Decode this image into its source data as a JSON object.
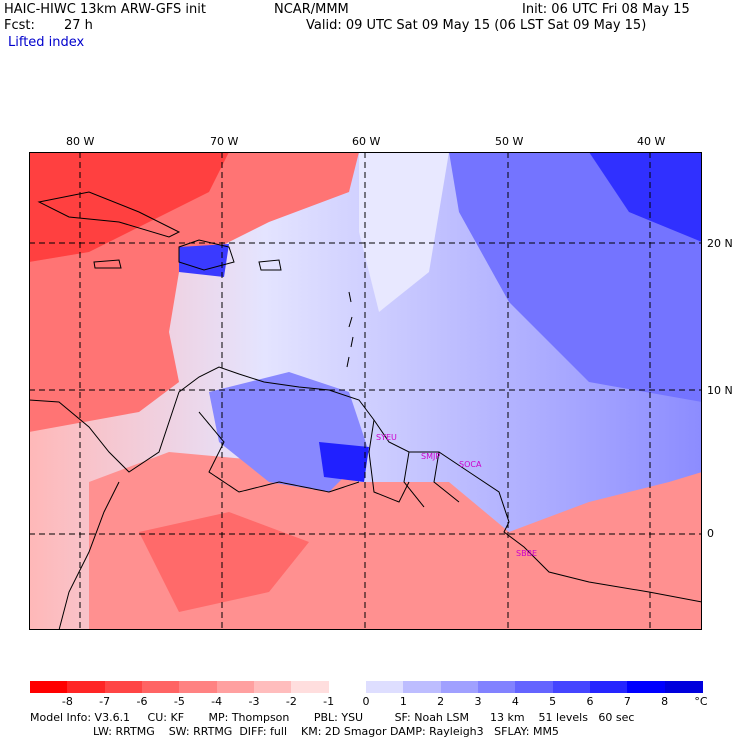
{
  "header": {
    "title_left": "HAIC-HIWC 13km ARW-GFS init",
    "title_center": "NCAR/MMM",
    "init": "Init: 06 UTC Fri 08 May 15",
    "fcst_label": "Fcst:",
    "fcst_value": "27 h",
    "valid": "Valid: 09 UTC Sat 09 May 15 (06 LST Sat 09 May 15)",
    "field": "Lifted index"
  },
  "map": {
    "lon_labels": [
      "80 W",
      "70 W",
      "60 W",
      "50 W",
      "40 W"
    ],
    "lat_labels": [
      "20 N",
      "10 N",
      "0"
    ],
    "stations": [
      "SYEU",
      "SMJP",
      "SOCA",
      "SBBE"
    ],
    "station_color": "#cc00cc"
  },
  "colorbar": {
    "labels": [
      "-8",
      "-7",
      "-6",
      "-5",
      "-4",
      "-3",
      "-2",
      "-1",
      "0",
      "1",
      "2",
      "3",
      "4",
      "5",
      "6",
      "7",
      "8"
    ],
    "unit": "°C",
    "colors": [
      "#ff0000",
      "#ff2525",
      "#ff4545",
      "#ff6464",
      "#ff8282",
      "#ffa0a0",
      "#ffbdbd",
      "#ffdede",
      "#ffffff",
      "#dedeff",
      "#bdbdff",
      "#a0a0ff",
      "#8282ff",
      "#6464ff",
      "#4545ff",
      "#2525ff",
      "#0000ff",
      "#0000dd"
    ]
  },
  "model_info": {
    "line1": "Model Info: V3.6.1     CU: KF       MP: Thompson       PBL: YSU         SF: Noah LSM      13 km    51 levels   60 sec",
    "line2": "                  LW: RRTMG    SW: RRTMG  DIFF: full    KM: 2D Smagor DAMP: Rayleigh3   SFLAY: MM5"
  }
}
